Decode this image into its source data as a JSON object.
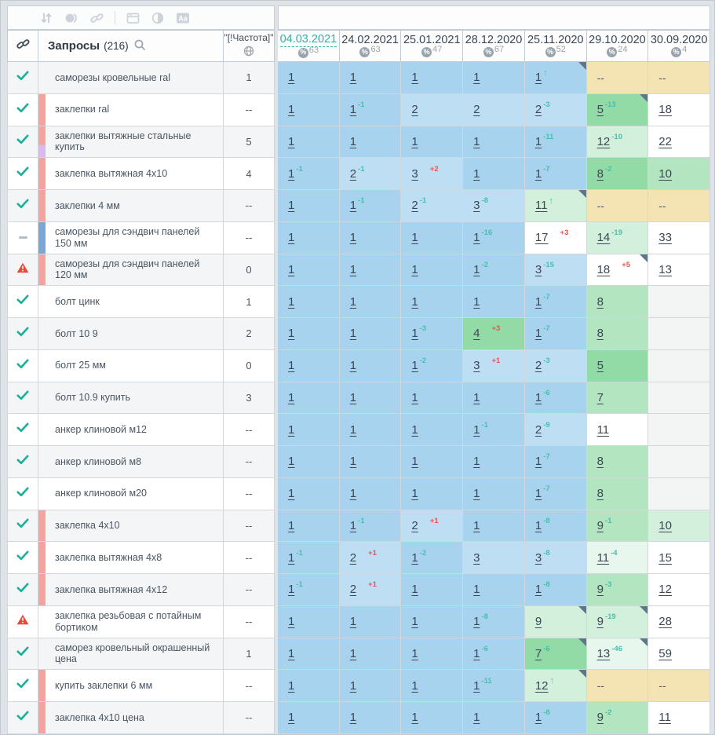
{
  "toolbar": {
    "icons": [
      "sort-icon",
      "circles-icon",
      "link-icon",
      "divider",
      "table-icon",
      "contrast-icon",
      "font-case-icon"
    ]
  },
  "header": {
    "link_column_icon": "link-icon",
    "queries_label": "Запросы",
    "queries_count": "(216)",
    "search_icon": "magnifier-icon",
    "frequency_label": "\"[!Частота]\"",
    "frequency_icon": "globe-icon",
    "dates": [
      {
        "label": "04.03.2021",
        "coverage": "63",
        "active": true
      },
      {
        "label": "24.02.2021",
        "coverage": "63",
        "active": false
      },
      {
        "label": "25.01.2021",
        "coverage": "47",
        "active": false
      },
      {
        "label": "28.12.2020",
        "coverage": "67",
        "active": false
      },
      {
        "label": "25.11.2020",
        "coverage": "52",
        "active": false
      },
      {
        "label": "29.10.2020",
        "coverage": "24",
        "active": false
      },
      {
        "label": "30.09.2020",
        "coverage": "4",
        "active": false
      }
    ]
  },
  "palette": {
    "accent_teal": "#2bb3a3",
    "change_improve": "#45c0ae",
    "change_decline": "#e2574d",
    "top1_blue": "#a7d3ee",
    "top3_blue": "#bddef3",
    "green_mid": "#93dba6",
    "green_light": "#b3e5c0",
    "green_pale": "#d3f0dd",
    "green_faint": "#e7f7ed",
    "no_data_tan": "#f4e4b4",
    "group_pink": "#f3a49e",
    "group_blue": "#7ba7d4",
    "group_purple": "#d9b9ee",
    "corner_marker": "#5f7687"
  },
  "rows": [
    {
      "status": "ok",
      "bar": "none",
      "keyword": "саморезы кровельные ral",
      "frequency": "1",
      "cells": [
        [
          "1",
          null,
          "b1",
          0
        ],
        [
          "1",
          null,
          "b1",
          0
        ],
        [
          "1",
          null,
          "b1",
          0
        ],
        [
          "1",
          null,
          "b1",
          0
        ],
        [
          "1",
          "up",
          "b1",
          1
        ],
        [
          "--",
          null,
          "tan",
          0
        ],
        [
          "--",
          null,
          "tan",
          0
        ]
      ]
    },
    {
      "status": "ok",
      "bar": "pink",
      "keyword": "заклепки ral",
      "frequency": "--",
      "cells": [
        [
          "1",
          null,
          "b1",
          0
        ],
        [
          "1",
          "-1",
          "b1",
          0
        ],
        [
          "2",
          null,
          "b2",
          0
        ],
        [
          "2",
          null,
          "b2",
          0
        ],
        [
          "2",
          "-3",
          "b2",
          0
        ],
        [
          "5",
          "-13",
          "g1",
          1
        ],
        [
          "18",
          null,
          "wt",
          0
        ]
      ]
    },
    {
      "status": "ok",
      "bar": "pinkpurple",
      "keyword": "заклепки вытяжные стальные купить",
      "frequency": "5",
      "cells": [
        [
          "1",
          null,
          "b1",
          0
        ],
        [
          "1",
          null,
          "b1",
          0
        ],
        [
          "1",
          null,
          "b1",
          0
        ],
        [
          "1",
          null,
          "b1",
          0
        ],
        [
          "1",
          "-11",
          "b1",
          0
        ],
        [
          "12",
          "-10",
          "g3",
          0
        ],
        [
          "22",
          null,
          "wt",
          0
        ]
      ]
    },
    {
      "status": "ok",
      "bar": "pink",
      "keyword": "заклепка вытяжная 4x10",
      "frequency": "4",
      "cells": [
        [
          "1",
          "-1",
          "b1",
          0
        ],
        [
          "2",
          "-1",
          "b2",
          0
        ],
        [
          "3",
          "+2",
          "b2",
          0
        ],
        [
          "1",
          null,
          "b1",
          0
        ],
        [
          "1",
          "-7",
          "b1",
          0
        ],
        [
          "8",
          "-2",
          "g1",
          0
        ],
        [
          "10",
          null,
          "g2",
          0
        ]
      ]
    },
    {
      "status": "ok",
      "bar": "pink",
      "keyword": "заклепки 4 мм",
      "frequency": "--",
      "cells": [
        [
          "1",
          null,
          "b1",
          0
        ],
        [
          "1",
          "-1",
          "b1",
          0
        ],
        [
          "2",
          "-1",
          "b2",
          0
        ],
        [
          "3",
          "-8",
          "b2",
          0
        ],
        [
          "11",
          "up",
          "g3",
          1
        ],
        [
          "--",
          null,
          "tan",
          0
        ],
        [
          "--",
          null,
          "tan",
          0
        ]
      ]
    },
    {
      "status": "dash",
      "bar": "blue",
      "keyword": "саморезы для сэндвич панелей 150 мм",
      "frequency": "--",
      "cells": [
        [
          "1",
          null,
          "b1",
          0
        ],
        [
          "1",
          null,
          "b1",
          0
        ],
        [
          "1",
          null,
          "b1",
          0
        ],
        [
          "1",
          "-16",
          "b1",
          0
        ],
        [
          "17",
          "+3",
          "wt",
          0
        ],
        [
          "14",
          "-19",
          "g3",
          0
        ],
        [
          "33",
          null,
          "wt",
          0
        ]
      ]
    },
    {
      "status": "warn",
      "bar": "pink",
      "keyword": "саморезы для сэндвич панелей 120 мм",
      "frequency": "0",
      "cells": [
        [
          "1",
          null,
          "b1",
          0
        ],
        [
          "1",
          null,
          "b1",
          0
        ],
        [
          "1",
          null,
          "b1",
          0
        ],
        [
          "1",
          "-2",
          "b1",
          0
        ],
        [
          "3",
          "-15",
          "b2",
          0
        ],
        [
          "18",
          "+5",
          "wt",
          1
        ],
        [
          "13",
          null,
          "wt",
          0
        ]
      ]
    },
    {
      "status": "ok",
      "bar": "none",
      "keyword": "болт цинк",
      "frequency": "1",
      "cells": [
        [
          "1",
          null,
          "b1",
          0
        ],
        [
          "1",
          null,
          "b1",
          0
        ],
        [
          "1",
          null,
          "b1",
          0
        ],
        [
          "1",
          null,
          "b1",
          0
        ],
        [
          "1",
          "-7",
          "b1",
          0
        ],
        [
          "8",
          null,
          "g2",
          0
        ],
        [
          "",
          null,
          "mt",
          0
        ]
      ]
    },
    {
      "status": "ok",
      "bar": "none",
      "keyword": "болт 10 9",
      "frequency": "2",
      "cells": [
        [
          "1",
          null,
          "b1",
          0
        ],
        [
          "1",
          null,
          "b1",
          0
        ],
        [
          "1",
          "-3",
          "b1",
          0
        ],
        [
          "4",
          "+3",
          "g1",
          0
        ],
        [
          "1",
          "-7",
          "b1",
          0
        ],
        [
          "8",
          null,
          "g2",
          0
        ],
        [
          "",
          null,
          "mt",
          0
        ]
      ]
    },
    {
      "status": "ok",
      "bar": "none",
      "keyword": "болт 25 мм",
      "frequency": "0",
      "cells": [
        [
          "1",
          null,
          "b1",
          0
        ],
        [
          "1",
          null,
          "b1",
          0
        ],
        [
          "1",
          "-2",
          "b1",
          0
        ],
        [
          "3",
          "+1",
          "b2",
          0
        ],
        [
          "2",
          "-3",
          "b2",
          0
        ],
        [
          "5",
          null,
          "g1",
          0
        ],
        [
          "",
          null,
          "mt",
          0
        ]
      ]
    },
    {
      "status": "ok",
      "bar": "none",
      "keyword": "болт 10.9 купить",
      "frequency": "3",
      "cells": [
        [
          "1",
          null,
          "b1",
          0
        ],
        [
          "1",
          null,
          "b1",
          0
        ],
        [
          "1",
          null,
          "b1",
          0
        ],
        [
          "1",
          null,
          "b1",
          0
        ],
        [
          "1",
          "-6",
          "b1",
          0
        ],
        [
          "7",
          null,
          "g2",
          0
        ],
        [
          "",
          null,
          "mt",
          0
        ]
      ]
    },
    {
      "status": "ok",
      "bar": "none",
      "keyword": "анкер клиновой м12",
      "frequency": "--",
      "cells": [
        [
          "1",
          null,
          "b1",
          0
        ],
        [
          "1",
          null,
          "b1",
          0
        ],
        [
          "1",
          null,
          "b1",
          0
        ],
        [
          "1",
          "-1",
          "b1",
          0
        ],
        [
          "2",
          "-9",
          "b2",
          0
        ],
        [
          "11",
          null,
          "wt",
          0
        ],
        [
          "",
          null,
          "mt",
          0
        ]
      ]
    },
    {
      "status": "ok",
      "bar": "none",
      "keyword": "анкер клиновой м8",
      "frequency": "--",
      "cells": [
        [
          "1",
          null,
          "b1",
          0
        ],
        [
          "1",
          null,
          "b1",
          0
        ],
        [
          "1",
          null,
          "b1",
          0
        ],
        [
          "1",
          null,
          "b1",
          0
        ],
        [
          "1",
          "-7",
          "b1",
          0
        ],
        [
          "8",
          null,
          "g2",
          0
        ],
        [
          "",
          null,
          "mt",
          0
        ]
      ]
    },
    {
      "status": "ok",
      "bar": "none",
      "keyword": "анкер клиновой м20",
      "frequency": "--",
      "cells": [
        [
          "1",
          null,
          "b1",
          0
        ],
        [
          "1",
          null,
          "b1",
          0
        ],
        [
          "1",
          null,
          "b1",
          0
        ],
        [
          "1",
          null,
          "b1",
          0
        ],
        [
          "1",
          "-7",
          "b1",
          0
        ],
        [
          "8",
          null,
          "g2",
          0
        ],
        [
          "",
          null,
          "mt",
          0
        ]
      ]
    },
    {
      "status": "ok",
      "bar": "pink",
      "keyword": "заклепка 4х10",
      "frequency": "--",
      "cells": [
        [
          "1",
          null,
          "b1",
          0
        ],
        [
          "1",
          "-1",
          "b1",
          0
        ],
        [
          "2",
          "+1",
          "b2",
          0
        ],
        [
          "1",
          null,
          "b1",
          0
        ],
        [
          "1",
          "-8",
          "b1",
          0
        ],
        [
          "9",
          "-1",
          "g2",
          0
        ],
        [
          "10",
          null,
          "g3",
          0
        ]
      ]
    },
    {
      "status": "ok",
      "bar": "pink",
      "keyword": "заклепка вытяжная 4х8",
      "frequency": "--",
      "cells": [
        [
          "1",
          "-1",
          "b1",
          0
        ],
        [
          "2",
          "+1",
          "b2",
          0
        ],
        [
          "1",
          "-2",
          "b1",
          0
        ],
        [
          "3",
          null,
          "b2",
          0
        ],
        [
          "3",
          "-8",
          "b2",
          0
        ],
        [
          "11",
          "-4",
          "g4",
          0
        ],
        [
          "15",
          null,
          "wt",
          0
        ]
      ]
    },
    {
      "status": "ok",
      "bar": "pink",
      "keyword": "заклепка вытяжная 4х12",
      "frequency": "--",
      "cells": [
        [
          "1",
          "-1",
          "b1",
          0
        ],
        [
          "2",
          "+1",
          "b2",
          0
        ],
        [
          "1",
          null,
          "b1",
          0
        ],
        [
          "1",
          null,
          "b1",
          0
        ],
        [
          "1",
          "-8",
          "b1",
          0
        ],
        [
          "9",
          "-3",
          "g2",
          0
        ],
        [
          "12",
          null,
          "wt",
          0
        ]
      ]
    },
    {
      "status": "warn",
      "bar": "none",
      "keyword": "заклепка резьбовая с потайным бортиком",
      "frequency": "--",
      "cells": [
        [
          "1",
          null,
          "b1",
          0
        ],
        [
          "1",
          null,
          "b1",
          0
        ],
        [
          "1",
          null,
          "b1",
          0
        ],
        [
          "1",
          "-8",
          "b1",
          0
        ],
        [
          "9",
          null,
          "g3",
          1
        ],
        [
          "9",
          "-19",
          "g3",
          1
        ],
        [
          "28",
          null,
          "wt",
          0
        ]
      ]
    },
    {
      "status": "ok",
      "bar": "none",
      "keyword": "саморез кровельный окрашенный цена",
      "frequency": "1",
      "cells": [
        [
          "1",
          null,
          "b1",
          0
        ],
        [
          "1",
          null,
          "b1",
          0
        ],
        [
          "1",
          null,
          "b1",
          0
        ],
        [
          "1",
          "-6",
          "b1",
          0
        ],
        [
          "7",
          "-6",
          "g1",
          1
        ],
        [
          "13",
          "-46",
          "g4",
          1
        ],
        [
          "59",
          null,
          "wt",
          0
        ]
      ]
    },
    {
      "status": "ok",
      "bar": "pink",
      "keyword": "купить заклепки 6 мм",
      "frequency": "--",
      "cells": [
        [
          "1",
          null,
          "b1",
          0
        ],
        [
          "1",
          null,
          "b1",
          0
        ],
        [
          "1",
          null,
          "b1",
          0
        ],
        [
          "1",
          "-11",
          "b1",
          0
        ],
        [
          "12",
          "up",
          "g3",
          1
        ],
        [
          "--",
          null,
          "tan",
          0
        ],
        [
          "--",
          null,
          "tan",
          0
        ]
      ]
    },
    {
      "status": "ok",
      "bar": "pink",
      "keyword": "заклепка 4х10 цена",
      "frequency": "--",
      "cells": [
        [
          "1",
          null,
          "b1",
          0
        ],
        [
          "1",
          null,
          "b1",
          0
        ],
        [
          "1",
          null,
          "b1",
          0
        ],
        [
          "1",
          null,
          "b1",
          0
        ],
        [
          "1",
          "-8",
          "b1",
          0
        ],
        [
          "9",
          "-2",
          "g2",
          0
        ],
        [
          "11",
          null,
          "wt",
          0
        ]
      ]
    }
  ]
}
